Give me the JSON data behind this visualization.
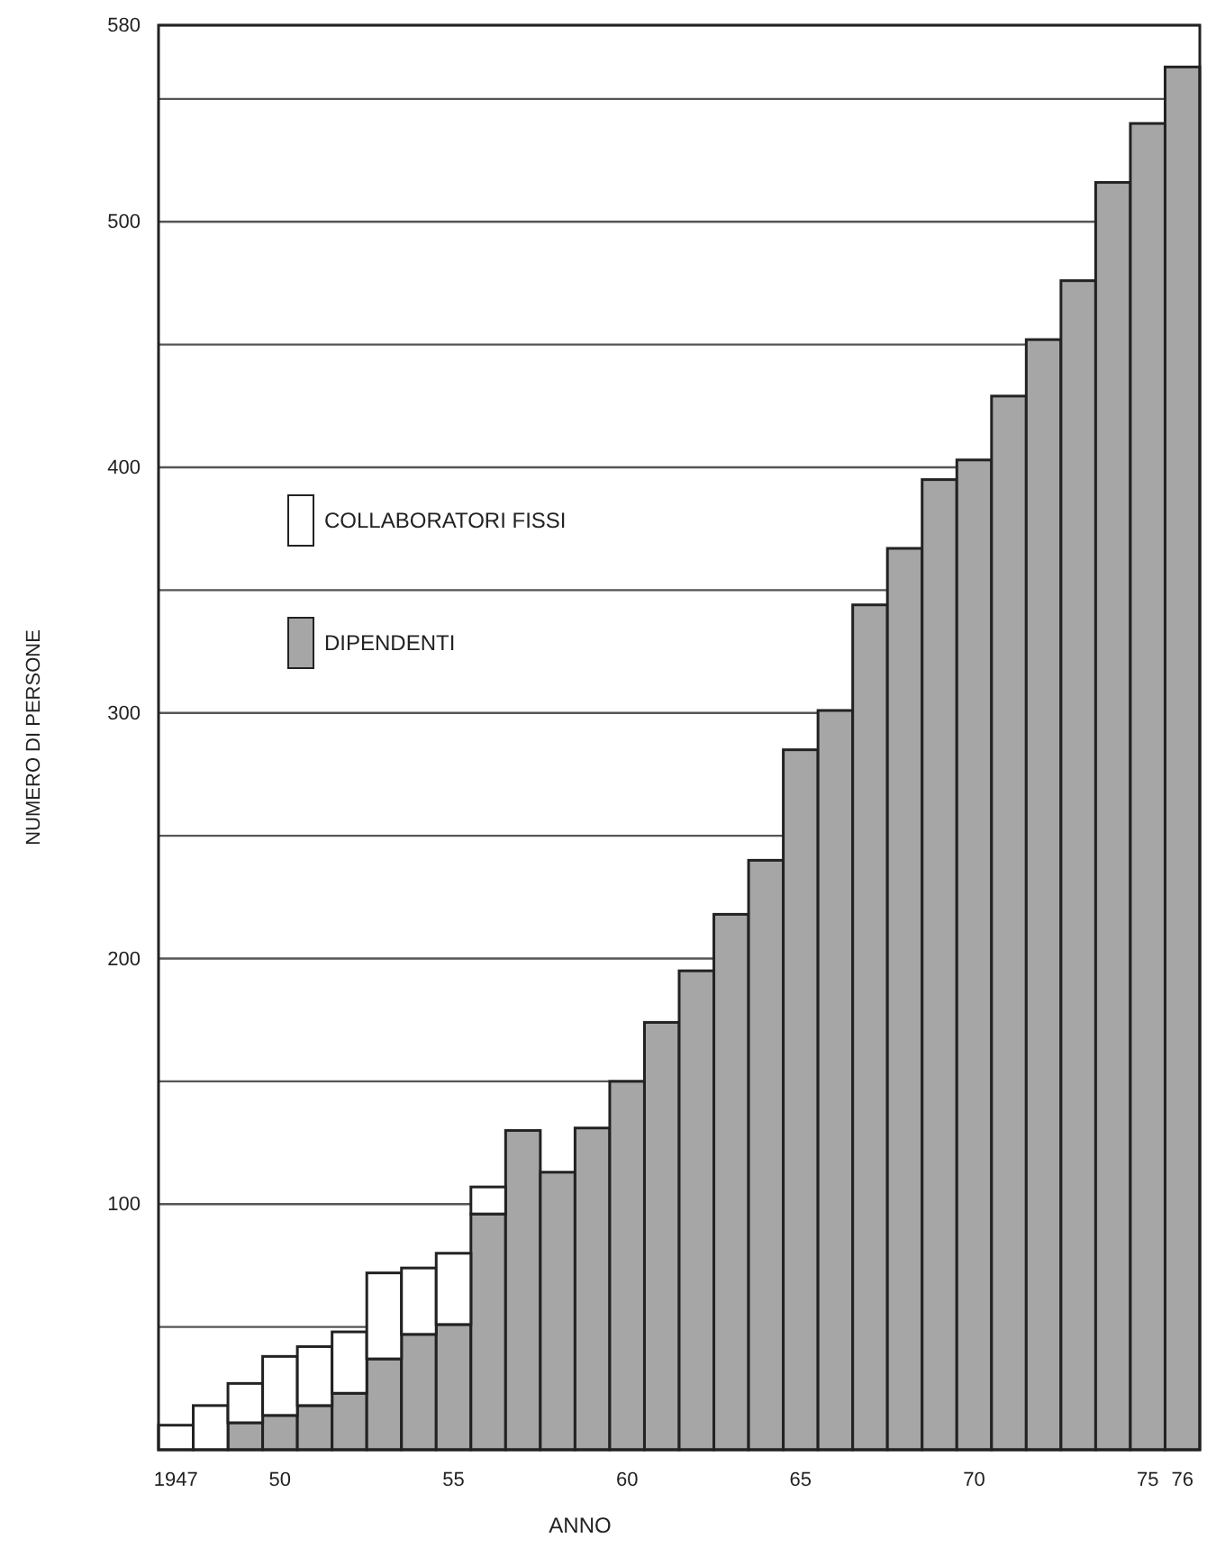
{
  "chart_data": {
    "type": "bar",
    "stacked": true,
    "xlabel": "ANNO",
    "ylabel": "NUMERO DI PERSONE",
    "categories": [
      "1947",
      null,
      null,
      "50",
      null,
      null,
      null,
      null,
      "55",
      null,
      null,
      null,
      null,
      "60",
      null,
      null,
      null,
      null,
      "65",
      null,
      null,
      null,
      null,
      "70",
      null,
      null,
      null,
      null,
      "75",
      "76"
    ],
    "series": [
      {
        "name": "DIPENDENTI",
        "color": "#a6a6a6",
        "values": [
          null,
          null,
          11,
          14,
          18,
          23,
          37,
          47,
          51,
          96,
          130,
          113,
          131,
          150,
          174,
          195,
          218,
          240,
          285,
          301,
          344,
          367,
          395,
          403,
          429,
          452,
          476,
          516,
          540,
          563
        ]
      },
      {
        "name": "COLLABORATORI FISSI",
        "color": "#ffffff",
        "values": [
          10,
          18,
          16,
          24,
          24,
          25,
          35,
          27,
          29,
          11,
          0,
          0,
          0,
          0,
          0,
          0,
          0,
          0,
          0,
          0,
          0,
          0,
          0,
          0,
          0,
          0,
          0,
          0,
          0,
          0
        ]
      }
    ],
    "ylim": [
      0,
      580
    ],
    "yticks": [
      {
        "value": 50,
        "label": null
      },
      100,
      {
        "value": 150,
        "label": null
      },
      200,
      {
        "value": 250,
        "label": null
      },
      300,
      {
        "value": 350,
        "label": null
      },
      400,
      {
        "value": 450,
        "label": null
      },
      500,
      {
        "value": 550,
        "label": null
      },
      580
    ],
    "grid": "y",
    "legend": "left"
  }
}
